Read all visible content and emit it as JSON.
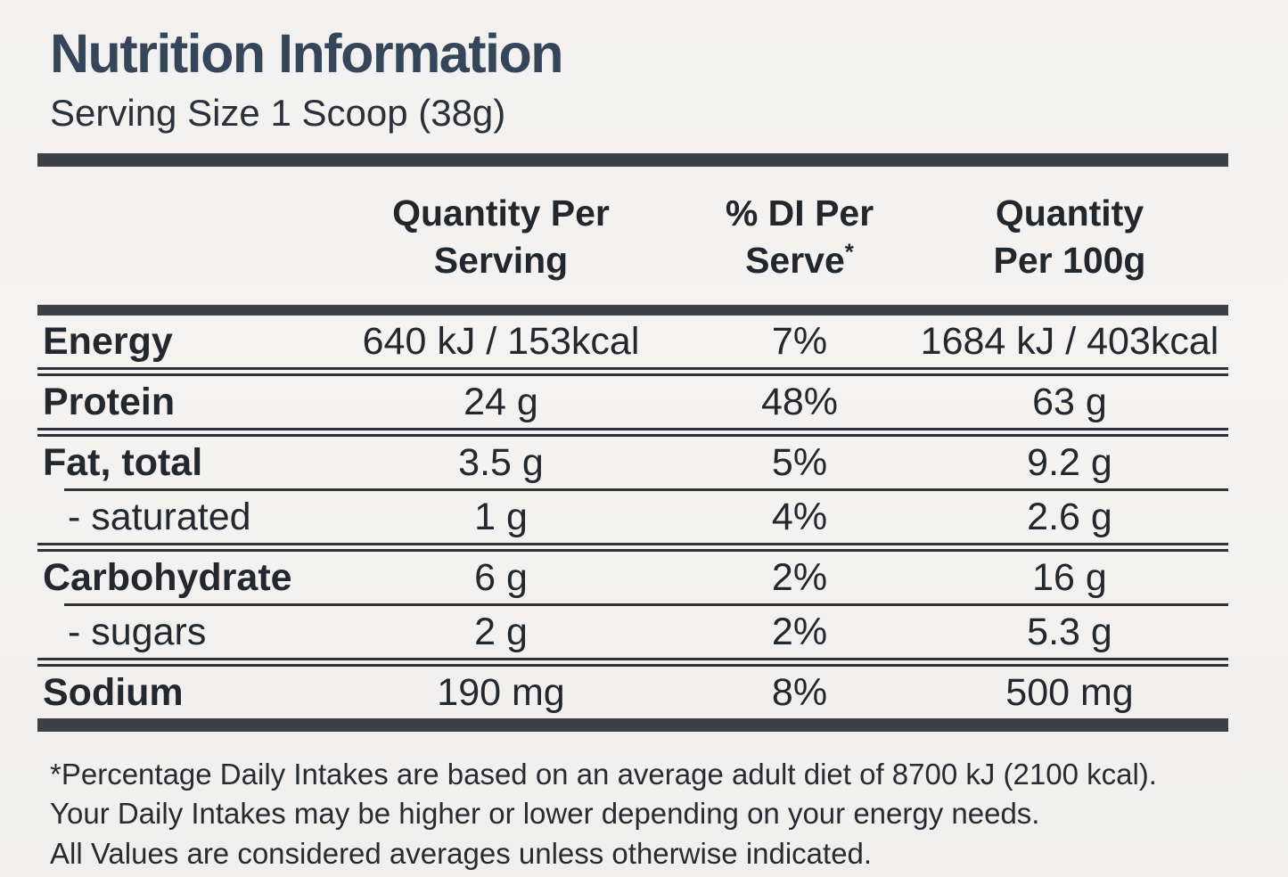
{
  "header": {
    "title": "Nutrition Information",
    "serving_size": "Serving Size 1 Scoop (38g)"
  },
  "table": {
    "column_headers": [
      {
        "line1": "Quantity Per",
        "line2": "Serving",
        "sup": ""
      },
      {
        "line1": "% DI Per",
        "line2": "Serve",
        "sup": "*"
      },
      {
        "line1": "Quantity",
        "line2": "Per 100g",
        "sup": ""
      }
    ],
    "rows": [
      {
        "label": "Energy",
        "per_serving": "640 kJ / 153kcal",
        "di_per_serve": "7%",
        "per_100g": "1684 kJ / 403kcal"
      },
      {
        "label": "Protein",
        "per_serving": "24 g",
        "di_per_serve": "48%",
        "per_100g": "63 g"
      },
      {
        "label": "Fat, total",
        "per_serving": "3.5 g",
        "di_per_serve": "5%",
        "per_100g": "9.2 g"
      },
      {
        "label": "- saturated",
        "per_serving": "1 g",
        "di_per_serve": "4%",
        "per_100g": "2.6 g"
      },
      {
        "label": "Carbohydrate",
        "per_serving": "6 g",
        "di_per_serve": "2%",
        "per_100g": "16 g"
      },
      {
        "label": "- sugars",
        "per_serving": "2 g",
        "di_per_serve": "2%",
        "per_100g": "5.3 g"
      },
      {
        "label": "Sodium",
        "per_serving": "190 mg",
        "di_per_serve": "8%",
        "per_100g": "500 mg"
      }
    ]
  },
  "footnotes": [
    "*Percentage Daily Intakes are based on an average adult diet of 8700 kJ (2100 kcal).",
    "Your Daily Intakes may be higher or lower depending on your energy needs.",
    "All Values are considered averages unless otherwise indicated."
  ],
  "colors": {
    "title": "#35465a",
    "text": "#23272e",
    "rule": "#2e3238",
    "bar": "#3d4044",
    "background": "#f1f0ee"
  }
}
